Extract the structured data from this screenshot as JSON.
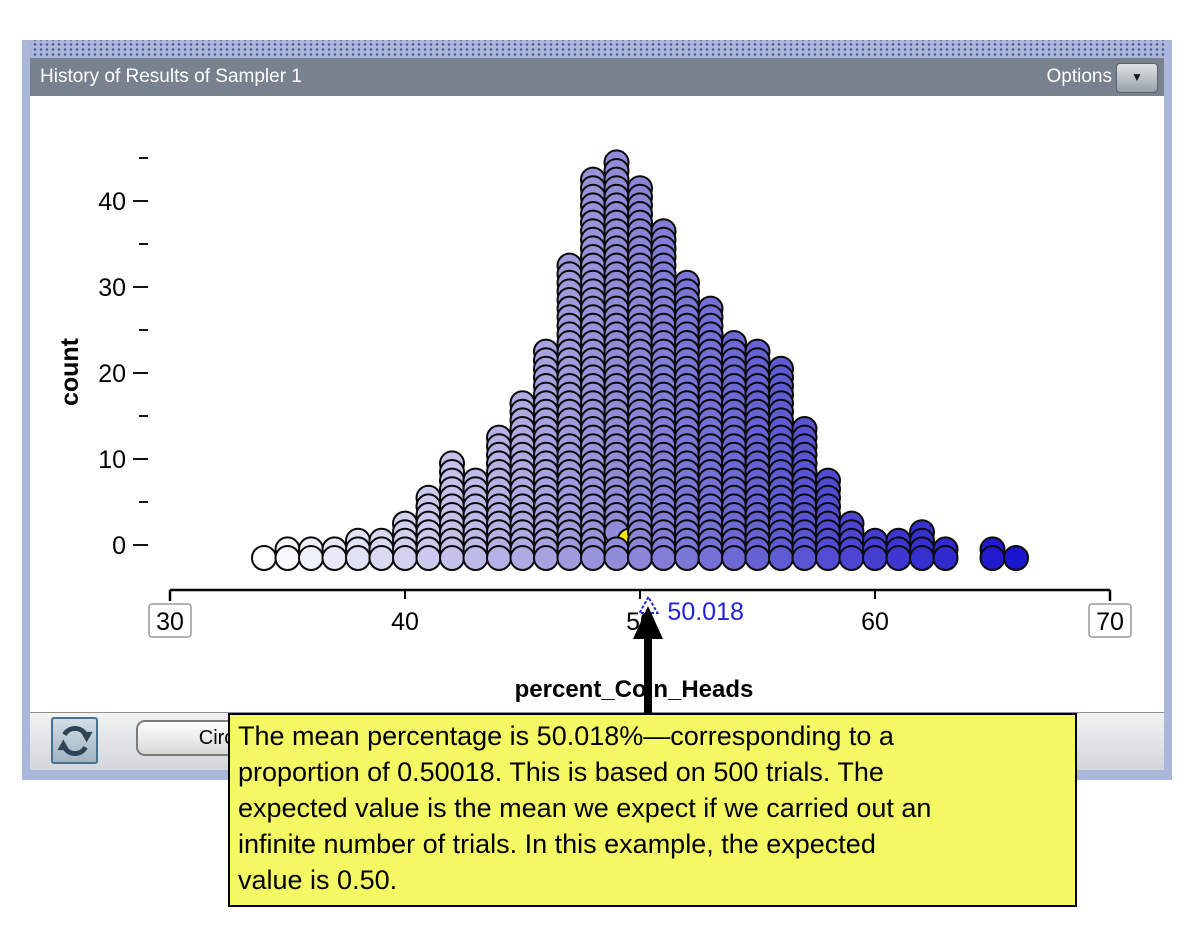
{
  "window": {
    "title": "History of Results of Sampler 1",
    "options_label": "Options",
    "options_menu_icon": "chevron-down-icon"
  },
  "toolbar": {
    "rerun_icon": "refresh-icon",
    "icon_type_button_label": "Circle Icon"
  },
  "tooltip": {
    "text": "The mean percentage is 50.018%—corresponding to a\nproportion of 0.50018. This is based on 500 trials. The\nexpected value is the mean we expect if we carried out an\ninfinite number of trials. In this example, the expected\nvalue is 0.50.",
    "background": "#f4f963",
    "has_arrow_to_mean": true
  },
  "chart_data": {
    "type": "stacked_dot_plot",
    "xlabel": "percent_Coin_Heads",
    "ylabel": "count",
    "n_trials": 500,
    "x_axis": {
      "min": 30,
      "max": 70,
      "tick_labels": [
        "30",
        "40",
        "50",
        "60",
        "70"
      ],
      "ticks": [
        30,
        40,
        50,
        60,
        70
      ],
      "boxed_ticks": [
        30,
        70
      ]
    },
    "y_axis": {
      "major_ticks": [
        0,
        10,
        20,
        30,
        40
      ],
      "minor_ticks": [
        5,
        15,
        25,
        35,
        45
      ],
      "tick_labels": [
        "0",
        "10",
        "20",
        "30",
        "40"
      ]
    },
    "mean": {
      "value": 50.018,
      "label": "50.018",
      "marker": "triangle",
      "color": "#2222dd"
    },
    "bins": {
      "values": [
        34,
        35,
        36,
        37,
        38,
        39,
        40,
        41,
        42,
        43,
        44,
        45,
        46,
        47,
        48,
        49,
        50,
        51,
        52,
        53,
        54,
        55,
        56,
        57,
        58,
        59,
        60,
        61,
        62,
        63,
        64,
        65,
        66
      ],
      "counts": [
        1,
        2,
        2,
        2,
        3,
        3,
        5,
        8,
        12,
        10,
        15,
        19,
        25,
        35,
        45,
        47,
        44,
        39,
        33,
        30,
        26,
        25,
        23,
        16,
        10,
        5,
        3,
        3,
        4,
        2,
        0,
        2,
        1
      ]
    },
    "highlight": {
      "value": 49,
      "row": 2,
      "color": "#ffe800"
    },
    "dot_color_stops": {
      "values": [
        34,
        49,
        66
      ],
      "colors": [
        "#ffffff",
        "#908cd8",
        "#1a14cc"
      ]
    },
    "dot_outline": "#0a0a0a"
  }
}
